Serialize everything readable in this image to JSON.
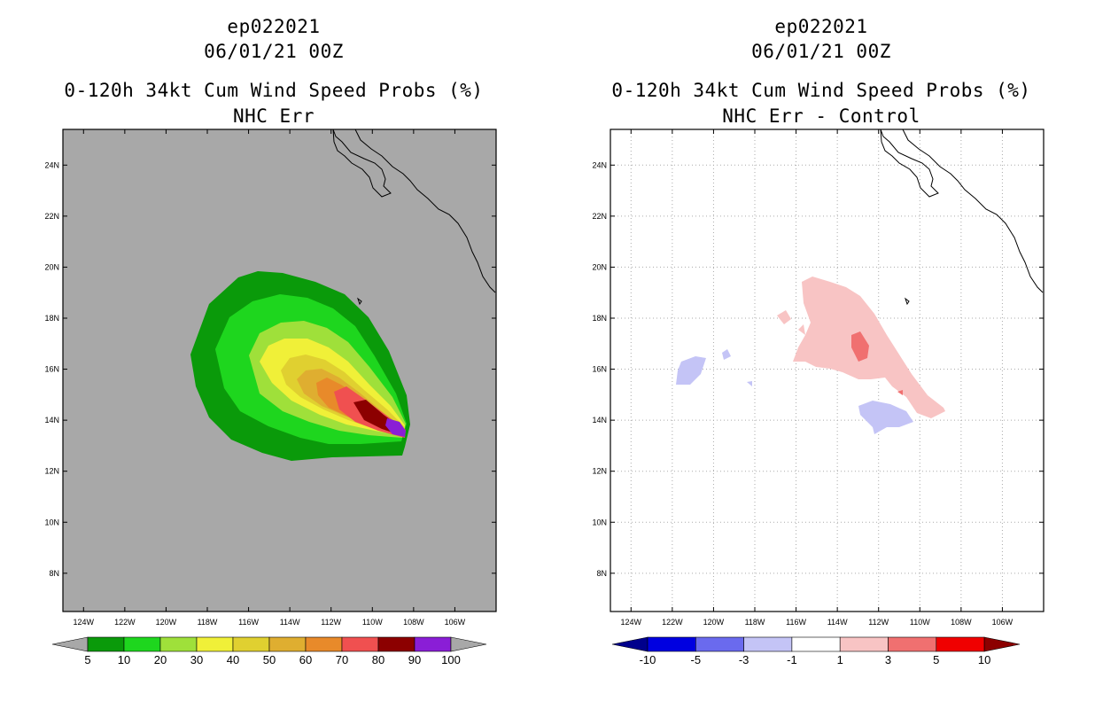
{
  "panels": [
    {
      "storm_id": "ep022021",
      "datetime": "06/01/21 00Z",
      "product": "0-120h 34kt Cum Wind Speed Probs (%)",
      "subtitle": "NHC Err",
      "background_color": "#a8a8a8",
      "colorbar": {
        "labels": [
          "5",
          "10",
          "20",
          "30",
          "40",
          "50",
          "60",
          "70",
          "80",
          "90",
          "100"
        ],
        "colors": [
          "#0a9a0a",
          "#1ed61e",
          "#9fe03a",
          "#f0f038",
          "#e0d030",
          "#dfae30",
          "#e88a2a",
          "#f05050",
          "#8c0000",
          "#8a1ed6"
        ],
        "under_color": "#a8a8a8",
        "over_color": "#a8a8a8"
      }
    },
    {
      "storm_id": "ep022021",
      "datetime": "06/01/21 00Z",
      "product": "0-120h 34kt Cum Wind Speed Probs (%)",
      "subtitle": "NHC Err - Control",
      "background_color": "#ffffff",
      "colorbar": {
        "labels": [
          "-10",
          "-5",
          "-3",
          "-1",
          "1",
          "3",
          "5",
          "10"
        ],
        "colors": [
          "#0000e0",
          "#6a6aee",
          "#c4c4f6",
          "#ffffff",
          "#f8c4c4",
          "#f07070",
          "#f00000"
        ],
        "under_color": "#00008c",
        "over_color": "#8c0000"
      }
    }
  ],
  "axes": {
    "lon_ticks": [
      "124W",
      "122W",
      "120W",
      "118W",
      "116W",
      "114W",
      "112W",
      "110W",
      "108W",
      "106W"
    ],
    "lat_ticks": [
      "8N",
      "10N",
      "12N",
      "14N",
      "16N",
      "18N",
      "20N",
      "22N",
      "24N"
    ],
    "lon_values": [
      -124,
      -122,
      -120,
      -118,
      -116,
      -114,
      -112,
      -110,
      -108,
      -106
    ],
    "lat_values": [
      8,
      10,
      12,
      14,
      16,
      18,
      20,
      22,
      24
    ]
  }
}
